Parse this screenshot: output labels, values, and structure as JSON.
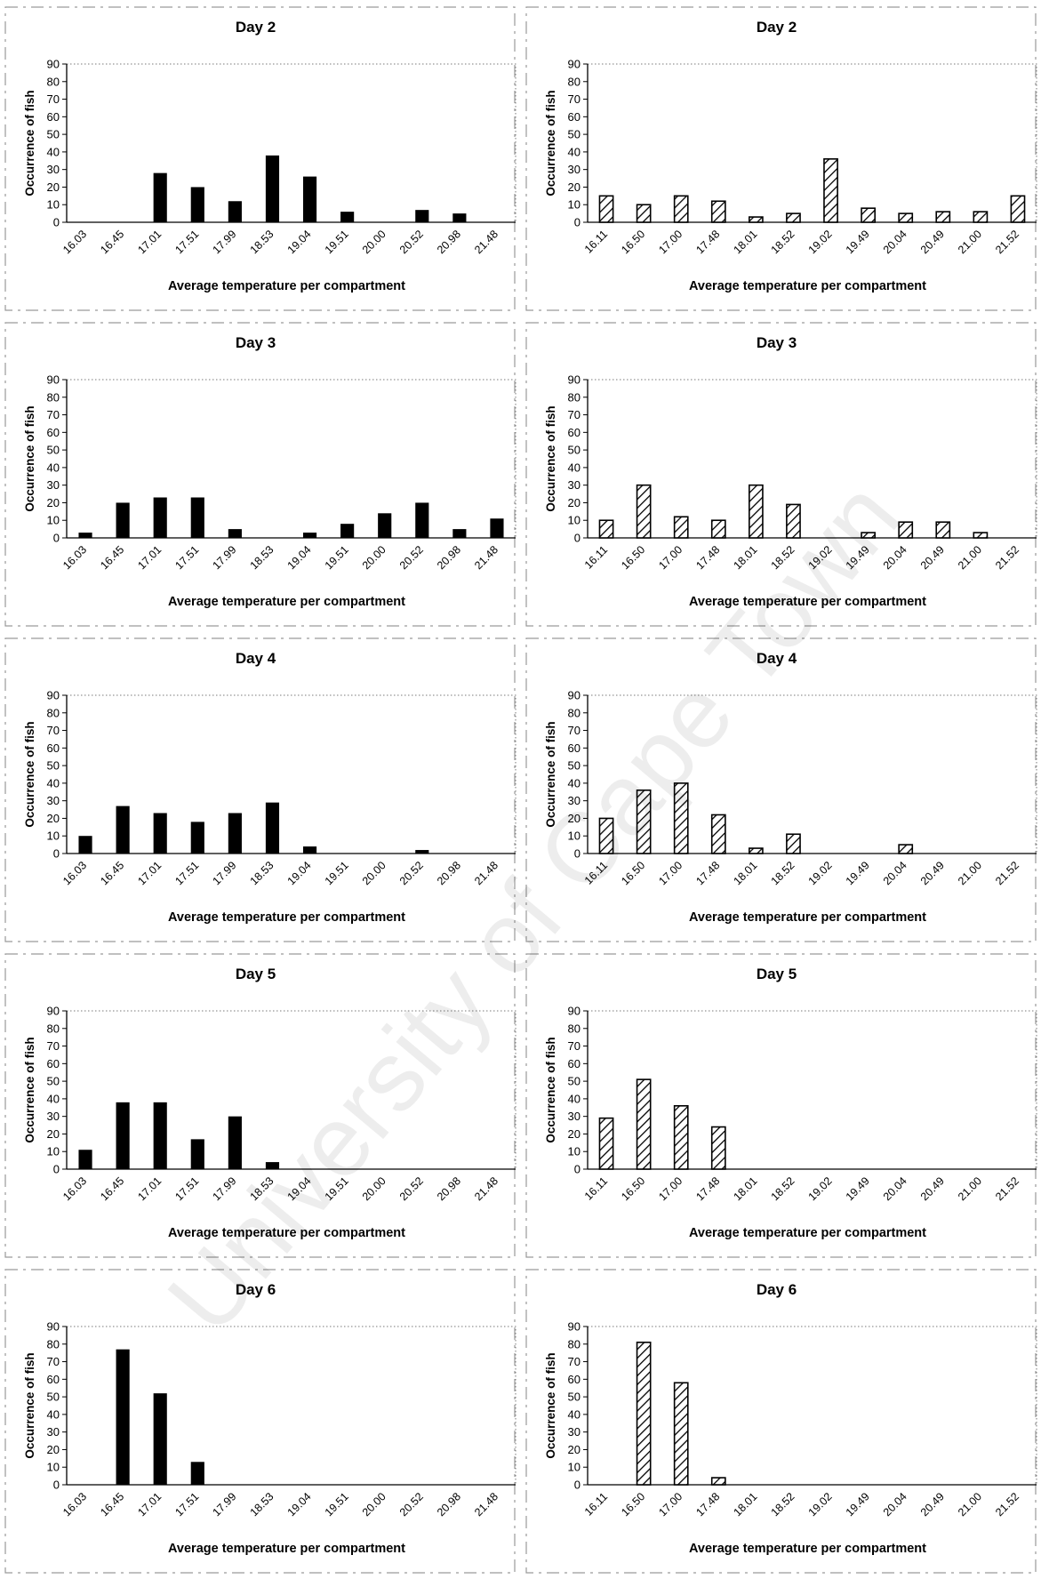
{
  "watermark": "University of Cape Town",
  "chart_data": [
    {
      "type": "bar",
      "title": "Day 2",
      "xlabel": "Average temperature per compartment",
      "ylabel": "Occurrence of fish",
      "ylim": [
        0,
        90
      ],
      "yticks": [
        0,
        10,
        20,
        30,
        40,
        50,
        60,
        70,
        80,
        90
      ],
      "style": "solid",
      "categories": [
        "16.03",
        "16.45",
        "17.01",
        "17.51",
        "17.99",
        "18.53",
        "19.04",
        "19.51",
        "20.00",
        "20.52",
        "20.98",
        "21.48"
      ],
      "values": [
        0,
        0,
        28,
        20,
        12,
        38,
        26,
        6,
        0,
        7,
        5,
        0
      ]
    },
    {
      "type": "bar",
      "title": "Day 2",
      "xlabel": "Average temperature per compartment",
      "ylabel": "Occurrence of fish",
      "ylim": [
        0,
        90
      ],
      "yticks": [
        0,
        10,
        20,
        30,
        40,
        50,
        60,
        70,
        80,
        90
      ],
      "style": "hatched",
      "categories": [
        "16.11",
        "16.50",
        "17.00",
        "17.48",
        "18.01",
        "18.52",
        "19.02",
        "19.49",
        "20.04",
        "20.49",
        "21.00",
        "21.52"
      ],
      "values": [
        15,
        10,
        15,
        12,
        3,
        5,
        36,
        8,
        5,
        6,
        6,
        15
      ]
    },
    {
      "type": "bar",
      "title": "Day 3",
      "xlabel": "Average temperature per compartment",
      "ylabel": "Occurrence of fish",
      "ylim": [
        0,
        90
      ],
      "yticks": [
        0,
        10,
        20,
        30,
        40,
        50,
        60,
        70,
        80,
        90
      ],
      "style": "solid",
      "categories": [
        "16.03",
        "16.45",
        "17.01",
        "17.51",
        "17.99",
        "18.53",
        "19.04",
        "19.51",
        "20.00",
        "20.52",
        "20.98",
        "21.48"
      ],
      "values": [
        3,
        20,
        23,
        23,
        5,
        0,
        3,
        8,
        14,
        20,
        5,
        11
      ]
    },
    {
      "type": "bar",
      "title": "Day 3",
      "xlabel": "Average temperature per compartment",
      "ylabel": "Occurrence of fish",
      "ylim": [
        0,
        90
      ],
      "yticks": [
        0,
        10,
        20,
        30,
        40,
        50,
        60,
        70,
        80,
        90
      ],
      "style": "hatched",
      "categories": [
        "16.11",
        "16.50",
        "17.00",
        "17.48",
        "18.01",
        "18.52",
        "19.02",
        "19.49",
        "20.04",
        "20.49",
        "21.00",
        "21.52"
      ],
      "values": [
        10,
        30,
        12,
        10,
        30,
        19,
        0,
        3,
        9,
        9,
        3,
        0
      ]
    },
    {
      "type": "bar",
      "title": "Day 4",
      "xlabel": "Average temperature per compartment",
      "ylabel": "Occurrence of fish",
      "ylim": [
        0,
        90
      ],
      "yticks": [
        0,
        10,
        20,
        30,
        40,
        50,
        60,
        70,
        80,
        90
      ],
      "style": "solid",
      "categories": [
        "16.03",
        "16.45",
        "17.01",
        "17.51",
        "17.99",
        "18.53",
        "19.04",
        "19.51",
        "20.00",
        "20.52",
        "20.98",
        "21.48"
      ],
      "values": [
        10,
        27,
        23,
        18,
        23,
        29,
        4,
        0,
        0,
        2,
        0,
        0
      ]
    },
    {
      "type": "bar",
      "title": "Day 4",
      "xlabel": "Average temperature per compartment",
      "ylabel": "Occurrence of fish",
      "ylim": [
        0,
        90
      ],
      "yticks": [
        0,
        10,
        20,
        30,
        40,
        50,
        60,
        70,
        80,
        90
      ],
      "style": "hatched",
      "categories": [
        "16.11",
        "16.50",
        "17.00",
        "17.48",
        "18.01",
        "18.52",
        "19.02",
        "19.49",
        "20.04",
        "20.49",
        "21.00",
        "21.52"
      ],
      "values": [
        20,
        36,
        40,
        22,
        3,
        11,
        0,
        0,
        5,
        0,
        0,
        0
      ]
    },
    {
      "type": "bar",
      "title": "Day 5",
      "xlabel": "Average temperature per compartment",
      "ylabel": "Occurrence of fish",
      "ylim": [
        0,
        90
      ],
      "yticks": [
        0,
        10,
        20,
        30,
        40,
        50,
        60,
        70,
        80,
        90
      ],
      "style": "solid",
      "categories": [
        "16.03",
        "16.45",
        "17.01",
        "17.51",
        "17.99",
        "18.53",
        "19.04",
        "19.51",
        "20.00",
        "20.52",
        "20.98",
        "21.48"
      ],
      "values": [
        11,
        38,
        38,
        17,
        30,
        4,
        0,
        0,
        0,
        0,
        0,
        0
      ]
    },
    {
      "type": "bar",
      "title": "Day 5",
      "xlabel": "Average temperature per compartment",
      "ylabel": "Occurrence of fish",
      "ylim": [
        0,
        90
      ],
      "yticks": [
        0,
        10,
        20,
        30,
        40,
        50,
        60,
        70,
        80,
        90
      ],
      "style": "hatched",
      "categories": [
        "16.11",
        "16.50",
        "17.00",
        "17.48",
        "18.01",
        "18.52",
        "19.02",
        "19.49",
        "20.04",
        "20.49",
        "21.00",
        "21.52"
      ],
      "values": [
        29,
        51,
        36,
        24,
        0,
        0,
        0,
        0,
        0,
        0,
        0,
        0
      ]
    },
    {
      "type": "bar",
      "title": "Day 6",
      "xlabel": "Average temperature per compartment",
      "ylabel": "Occurrence of fish",
      "ylim": [
        0,
        90
      ],
      "yticks": [
        0,
        10,
        20,
        30,
        40,
        50,
        60,
        70,
        80,
        90
      ],
      "style": "solid",
      "categories": [
        "16.03",
        "16.45",
        "17.01",
        "17.51",
        "17.99",
        "18.53",
        "19.04",
        "19.51",
        "20.00",
        "20.52",
        "20.98",
        "21.48"
      ],
      "values": [
        0,
        77,
        52,
        13,
        0,
        0,
        0,
        0,
        0,
        0,
        0,
        0
      ]
    },
    {
      "type": "bar",
      "title": "Day 6",
      "xlabel": "Average temperature per compartment",
      "ylabel": "Occurrence of fish",
      "ylim": [
        0,
        90
      ],
      "yticks": [
        0,
        10,
        20,
        30,
        40,
        50,
        60,
        70,
        80,
        90
      ],
      "style": "hatched",
      "categories": [
        "16.11",
        "16.50",
        "17.00",
        "17.48",
        "18.01",
        "18.52",
        "19.02",
        "19.49",
        "20.04",
        "20.49",
        "21.00",
        "21.52"
      ],
      "values": [
        0,
        81,
        58,
        4,
        0,
        0,
        0,
        0,
        0,
        0,
        0,
        0
      ]
    }
  ]
}
